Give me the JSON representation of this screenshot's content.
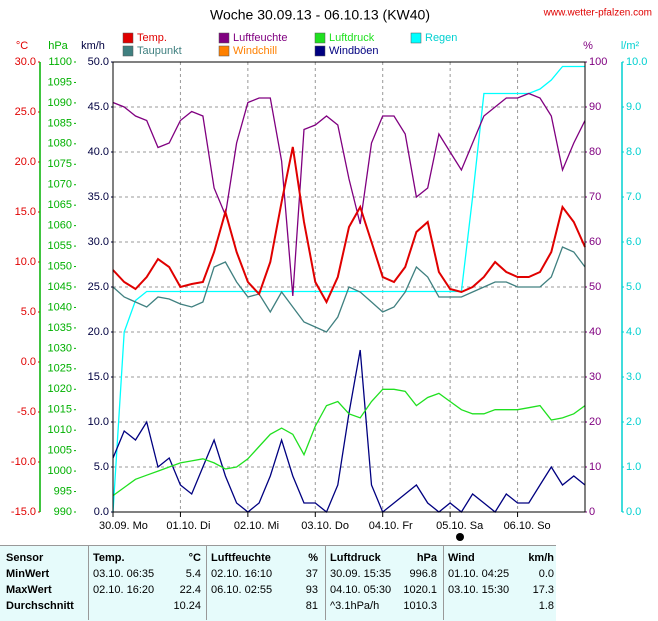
{
  "chart_data": {
    "type": "line",
    "title": "Woche 30.09.13 - 06.10.13 (KW40)",
    "source": "www.wetter-pfalzen.com",
    "x": [
      0,
      4,
      8,
      12,
      16,
      20,
      24,
      28,
      32,
      36,
      40,
      44,
      48,
      52,
      56,
      60,
      64,
      68,
      72,
      76,
      80,
      84,
      88,
      92,
      96,
      100,
      104,
      108,
      112,
      116,
      120,
      124,
      128,
      132,
      136,
      140,
      144,
      148,
      152,
      156,
      160,
      164,
      168
    ],
    "xlim": [
      0,
      168
    ],
    "xticks": [
      {
        "value": 0,
        "label": "30.09. Mo"
      },
      {
        "value": 24,
        "label": "01.10. Di"
      },
      {
        "value": 48,
        "label": "02.10. Mi"
      },
      {
        "value": 72,
        "label": "03.10. Do"
      },
      {
        "value": 96,
        "label": "04.10. Fr"
      },
      {
        "value": 120,
        "label": "05.10. Sa"
      },
      {
        "value": 144,
        "label": "06.10. So"
      }
    ],
    "grid": true,
    "axes": {
      "temp": {
        "label": "°C",
        "color": "#e00000",
        "lim": [
          -15,
          30
        ],
        "ticks": [
          {
            "value": 30,
            "label": "30.0"
          },
          {
            "value": 25,
            "label": "25.0"
          },
          {
            "value": 20,
            "label": "20.0"
          },
          {
            "value": 15,
            "label": "15.0"
          },
          {
            "value": 10,
            "label": "10.0"
          },
          {
            "value": 5,
            "label": "5.0"
          },
          {
            "value": 0,
            "label": "0.0"
          },
          {
            "value": -5,
            "label": "-5.0"
          },
          {
            "value": -10,
            "label": "-10.0"
          },
          {
            "value": -15,
            "label": "-15.0"
          }
        ]
      },
      "pressure": {
        "label": "hPa",
        "color": "#00b000",
        "lim": [
          990,
          1100
        ],
        "ticks": [
          1100,
          1095,
          1090,
          1085,
          1080,
          1075,
          1070,
          1065,
          1060,
          1055,
          1050,
          1045,
          1040,
          1035,
          1030,
          1025,
          1020,
          1015,
          1010,
          1005,
          1000,
          995,
          990
        ]
      },
      "wind": {
        "label": "km/h",
        "color": "#000040",
        "lim": [
          0,
          50
        ],
        "ticks": [
          {
            "value": 50,
            "label": "50.0"
          },
          {
            "value": 45,
            "label": "45.0"
          },
          {
            "value": 40,
            "label": "40.0"
          },
          {
            "value": 35,
            "label": "35.0"
          },
          {
            "value": 30,
            "label": "30.0"
          },
          {
            "value": 25,
            "label": "25.0"
          },
          {
            "value": 20,
            "label": "20.0"
          },
          {
            "value": 15,
            "label": "15.0"
          },
          {
            "value": 10,
            "label": "10.0"
          },
          {
            "value": 5,
            "label": "5.0"
          },
          {
            "value": 0,
            "label": "0.0"
          }
        ]
      },
      "humidity": {
        "label": "%",
        "color": "#800080",
        "lim": [
          0,
          100
        ],
        "ticks": [
          100,
          90,
          80,
          70,
          60,
          50,
          40,
          30,
          20,
          10,
          0
        ]
      },
      "rain": {
        "label": "l/m²",
        "color": "#00d0d0",
        "lim": [
          0,
          10
        ],
        "ticks": [
          {
            "value": 10,
            "label": "10.0"
          },
          {
            "value": 9,
            "label": "9.0"
          },
          {
            "value": 8,
            "label": "8.0"
          },
          {
            "value": 7,
            "label": "7.0"
          },
          {
            "value": 6,
            "label": "6.0"
          },
          {
            "value": 5,
            "label": "5.0"
          },
          {
            "value": 4,
            "label": "4.0"
          },
          {
            "value": 3,
            "label": "3.0"
          },
          {
            "value": 2,
            "label": "2.0"
          },
          {
            "value": 1,
            "label": "1.0"
          },
          {
            "value": 0,
            "label": "0.0"
          }
        ]
      }
    },
    "series": [
      {
        "name": "Temp.",
        "color": "#e00000",
        "axis": "temp",
        "values": [
          9.2,
          8.0,
          7.3,
          8.5,
          10.3,
          9.5,
          7.5,
          7.8,
          8.0,
          11.0,
          15.0,
          11.0,
          8.0,
          6.8,
          10.0,
          16.0,
          21.5,
          14.0,
          8.0,
          6.0,
          8.5,
          13.5,
          15.5,
          12.0,
          8.5,
          8.0,
          9.5,
          13.0,
          14.0,
          9.0,
          7.3,
          7.0,
          7.5,
          8.5,
          10.0,
          9.0,
          8.5,
          8.5,
          9.0,
          11.0,
          15.5,
          14.0,
          11.5
        ]
      },
      {
        "name": "Taupunkt",
        "color": "#408080",
        "axis": "temp",
        "values": [
          7.5,
          6.5,
          6.0,
          5.5,
          6.5,
          6.3,
          5.8,
          5.5,
          6.0,
          9.5,
          10.0,
          8.0,
          6.5,
          6.8,
          5.0,
          7.0,
          5.5,
          4.0,
          3.5,
          3.0,
          4.5,
          7.5,
          7.0,
          6.0,
          5.0,
          5.5,
          7.0,
          9.5,
          8.5,
          6.5,
          6.5,
          6.5,
          7.0,
          7.5,
          8.0,
          8.0,
          7.5,
          7.5,
          7.5,
          8.5,
          11.5,
          11.0,
          9.5
        ]
      },
      {
        "name": "Luftfeuchte",
        "color": "#800080",
        "axis": "humidity",
        "values": [
          91,
          90,
          88,
          87,
          81,
          82,
          87,
          89,
          88,
          72,
          66,
          82,
          91,
          92,
          92,
          78,
          48,
          85,
          86,
          88,
          86,
          74,
          64,
          82,
          88,
          88,
          84,
          70,
          72,
          84,
          80,
          76,
          82,
          88,
          90,
          92,
          92,
          93,
          92,
          88,
          76,
          82,
          87
        ]
      },
      {
        "name": "Windchill",
        "color": "#ff8000",
        "axis": "temp",
        "values": [
          9.2,
          8.0,
          7.3,
          8.5,
          10.3,
          9.5,
          7.5,
          7.8,
          8.0,
          11.0,
          15.0,
          11.0,
          8.0,
          6.8,
          10.0,
          16.0,
          21.5,
          14.0,
          8.0,
          6.0,
          8.5,
          13.5,
          15.5,
          12.0,
          8.5,
          8.0,
          9.5,
          13.0,
          14.0,
          9.0,
          7.3,
          7.0,
          7.5,
          8.5,
          10.0,
          9.0,
          8.5,
          8.5,
          9.0,
          11.0,
          15.5,
          14.0,
          11.5
        ]
      },
      {
        "name": "Luftdruck",
        "color": "#20e020",
        "axis": "pressure",
        "values": [
          994,
          996,
          998,
          999,
          1000,
          1001,
          1002,
          1002.5,
          1003,
          1002,
          1000.5,
          1001,
          1003,
          1006,
          1009,
          1010.5,
          1009,
          1004,
          1011,
          1016,
          1017,
          1014,
          1013,
          1017,
          1020,
          1020,
          1019.5,
          1016,
          1018,
          1019,
          1017,
          1015,
          1014,
          1014,
          1015,
          1015,
          1015,
          1015.5,
          1016,
          1012.5,
          1013,
          1014,
          1016
        ]
      },
      {
        "name": "Windböen",
        "color": "#000080",
        "axis": "wind",
        "values": [
          6,
          9,
          8,
          10,
          5,
          6,
          3,
          2,
          5,
          8,
          4,
          1,
          0,
          1,
          4,
          8,
          4,
          1,
          1,
          0,
          3,
          11,
          18,
          3,
          0,
          1,
          2,
          3,
          1,
          0,
          1,
          0,
          2,
          1,
          0,
          2,
          1,
          1,
          3,
          5,
          3,
          4,
          3
        ]
      },
      {
        "name": "Regen",
        "color": "#00ffff",
        "axis": "rain",
        "values": [
          0,
          4.0,
          4.7,
          4.9,
          4.9,
          4.9,
          4.9,
          4.9,
          4.9,
          4.9,
          4.9,
          4.9,
          4.9,
          4.9,
          4.9,
          4.9,
          4.9,
          4.9,
          4.9,
          4.9,
          4.9,
          4.9,
          4.9,
          4.9,
          4.9,
          4.9,
          4.9,
          4.9,
          4.9,
          4.9,
          4.9,
          4.9,
          7.0,
          9.3,
          9.3,
          9.3,
          9.3,
          9.3,
          9.4,
          9.6,
          9.9,
          9.9,
          9.9
        ]
      }
    ]
  },
  "table": {
    "header": {
      "sensor": "Sensor",
      "groups": [
        {
          "name": "Temp.",
          "unit": "°C"
        },
        {
          "name": "Luftfeuchte",
          "unit": "%"
        },
        {
          "name": "Luftdruck",
          "unit": "hPa"
        },
        {
          "name": "Wind",
          "unit": "km/h"
        }
      ]
    },
    "rows": [
      {
        "label": "MinWert",
        "cells": [
          {
            "time": "03.10.  06:35",
            "value": "5.4"
          },
          {
            "time": "02.10.  16:10",
            "value": "37"
          },
          {
            "time": "30.09.  15:35",
            "value": "996.8"
          },
          {
            "time": "01.10.  04:25",
            "value": "0.0"
          }
        ]
      },
      {
        "label": "MaxWert",
        "cells": [
          {
            "time": "02.10.  16:20",
            "value": "22.4"
          },
          {
            "time": "06.10.  02:55",
            "value": "93"
          },
          {
            "time": "04.10.  05:30",
            "value": "1020.1"
          },
          {
            "time": "03.10.  15:30",
            "value": "17.3"
          }
        ]
      },
      {
        "label": "Durchschnitt",
        "cells": [
          {
            "value": "10.24"
          },
          {
            "value": "81"
          },
          {
            "time": "^3.1hPa/h",
            "value": "1010.3"
          },
          {
            "value": "1.8"
          }
        ]
      }
    ]
  }
}
